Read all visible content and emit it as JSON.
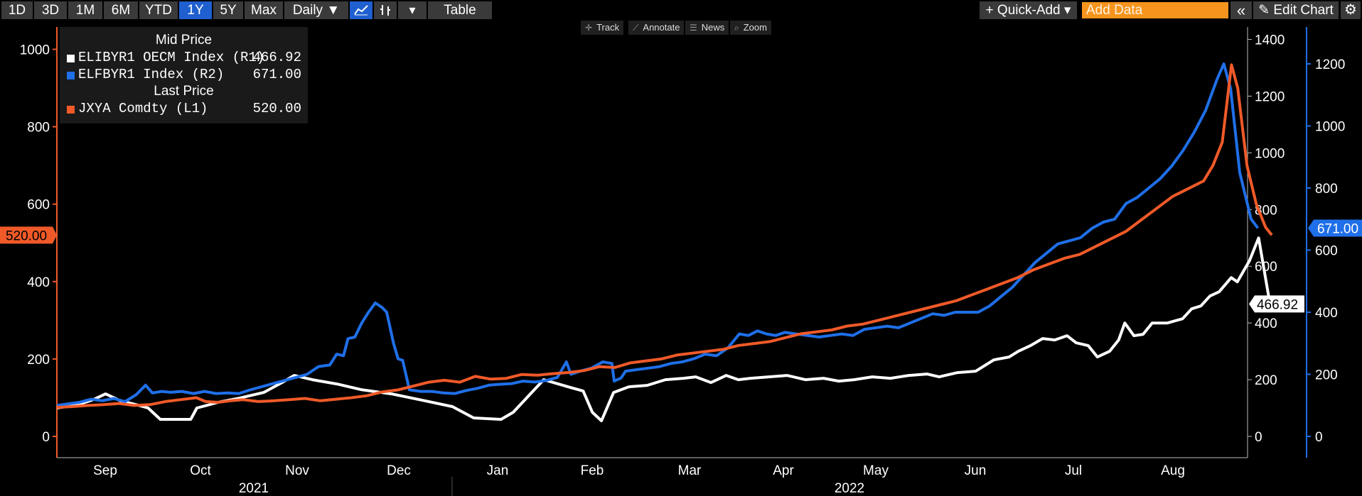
{
  "toolbar": {
    "ranges": [
      "1D",
      "3D",
      "1M",
      "6M",
      "YTD",
      "1Y",
      "5Y",
      "Max"
    ],
    "active_range": "1Y",
    "frequency": "Daily ▼",
    "table_label": "Table",
    "quick_add_label": "+ Quick-Add ▾",
    "add_data_placeholder": "Add Data",
    "edit_chart_label": "Edit Chart"
  },
  "mini_toolbar": {
    "track": "Track",
    "annotate": "Annotate",
    "news": "News",
    "zoom": "Zoom"
  },
  "legend": {
    "group1": "Mid Price",
    "group2": "Last Price",
    "items": [
      {
        "name": "ELIBYR1 OECM Index  (R1)",
        "value": "466.92",
        "color": "#ffffff"
      },
      {
        "name": "ELFBYR1 Index  (R2)",
        "value": "671.00",
        "color": "#1f6fe8"
      },
      {
        "name": "JXYA Comdty  (L1)",
        "value": "520.00",
        "color": "#f05a28"
      }
    ]
  },
  "tags": {
    "left": "520.00",
    "r1": "466.92",
    "r2": "671.00"
  },
  "chart_data": {
    "type": "line",
    "x_months": [
      "Sep",
      "Oct",
      "Nov",
      "Dec",
      "Jan",
      "Feb",
      "Mar",
      "Apr",
      "May",
      "Jun",
      "Jul",
      "Aug"
    ],
    "x_years": [
      "2021",
      "2022"
    ],
    "axes": {
      "left": {
        "ticks": [
          0,
          200,
          400,
          600,
          800,
          1000
        ],
        "color": "#f05a28"
      },
      "right1": {
        "ticks": [
          0,
          200,
          400,
          600,
          800,
          1000,
          1200,
          1400
        ],
        "color": "#ffffff"
      },
      "right2": {
        "ticks": [
          0,
          200,
          400,
          600,
          800,
          1000,
          1200
        ],
        "color": "#1f6fe8"
      }
    },
    "series": [
      {
        "name": "ELIBYR1 OECM Index",
        "axis": "right1",
        "color": "#ffffff",
        "points": [
          [
            0,
            100
          ],
          [
            0.3,
            105
          ],
          [
            0.7,
            112
          ],
          [
            1.2,
            130
          ],
          [
            1.6,
            150
          ],
          [
            2.1,
            125
          ],
          [
            2.6,
            112
          ],
          [
            3.0,
            100
          ],
          [
            3.4,
            60
          ],
          [
            4.4,
            60
          ],
          [
            4.6,
            100
          ],
          [
            5.3,
            120
          ],
          [
            6.0,
            135
          ],
          [
            6.8,
            155
          ],
          [
            7.4,
            190
          ],
          [
            7.8,
            215
          ],
          [
            8.4,
            200
          ],
          [
            9.2,
            185
          ],
          [
            10.0,
            165
          ],
          [
            11.0,
            150
          ],
          [
            12.0,
            128
          ],
          [
            13.0,
            105
          ],
          [
            13.7,
            65
          ],
          [
            14.6,
            60
          ],
          [
            15.0,
            85
          ],
          [
            16.0,
            200
          ],
          [
            16.8,
            175
          ],
          [
            17.3,
            160
          ],
          [
            17.6,
            85
          ],
          [
            17.9,
            55
          ],
          [
            18.3,
            155
          ],
          [
            18.8,
            175
          ],
          [
            19.4,
            180
          ],
          [
            20.0,
            200
          ],
          [
            20.6,
            205
          ],
          [
            21.0,
            210
          ],
          [
            21.5,
            190
          ],
          [
            22.0,
            215
          ],
          [
            22.4,
            200
          ],
          [
            22.8,
            205
          ],
          [
            23.4,
            210
          ],
          [
            24.0,
            215
          ],
          [
            24.6,
            200
          ],
          [
            25.2,
            205
          ],
          [
            25.7,
            195
          ],
          [
            26.2,
            200
          ],
          [
            26.8,
            210
          ],
          [
            27.4,
            205
          ],
          [
            28.0,
            215
          ],
          [
            28.6,
            220
          ],
          [
            29.0,
            210
          ],
          [
            29.6,
            225
          ],
          [
            30.2,
            230
          ],
          [
            30.8,
            270
          ],
          [
            31.3,
            280
          ],
          [
            31.6,
            300
          ],
          [
            32.0,
            320
          ],
          [
            32.4,
            345
          ],
          [
            32.8,
            340
          ],
          [
            33.2,
            355
          ],
          [
            33.5,
            330
          ],
          [
            33.9,
            320
          ],
          [
            34.2,
            280
          ],
          [
            34.6,
            300
          ],
          [
            34.9,
            340
          ],
          [
            35.1,
            400
          ],
          [
            35.4,
            355
          ],
          [
            35.7,
            360
          ],
          [
            36.0,
            400
          ],
          [
            36.5,
            400
          ],
          [
            37.0,
            415
          ],
          [
            37.3,
            450
          ],
          [
            37.6,
            460
          ],
          [
            37.9,
            495
          ],
          [
            38.2,
            510
          ],
          [
            38.6,
            560
          ],
          [
            38.8,
            545
          ],
          [
            39.2,
            620
          ],
          [
            39.5,
            700
          ],
          [
            39.9,
            450
          ],
          [
            40.1,
            460
          ],
          [
            40.3,
            466.92
          ]
        ]
      },
      {
        "name": "ELFBYR1 Index",
        "axis": "right2",
        "color": "#1f6fe8",
        "points": [
          [
            0,
            100
          ],
          [
            0.5,
            105
          ],
          [
            1.0,
            110
          ],
          [
            1.5,
            120
          ],
          [
            2.0,
            115
          ],
          [
            2.5,
            122
          ],
          [
            3.0,
            112
          ],
          [
            3.5,
            135
          ],
          [
            3.9,
            165
          ],
          [
            4.2,
            140
          ],
          [
            4.6,
            145
          ],
          [
            5.0,
            142
          ],
          [
            5.5,
            145
          ],
          [
            6.0,
            138
          ],
          [
            6.5,
            145
          ],
          [
            7.0,
            138
          ],
          [
            7.5,
            140
          ],
          [
            8.0,
            138
          ],
          [
            8.5,
            150
          ],
          [
            9.0,
            160
          ],
          [
            9.5,
            170
          ],
          [
            10.0,
            180
          ],
          [
            10.5,
            190
          ],
          [
            11.0,
            200
          ],
          [
            11.5,
            225
          ],
          [
            12.0,
            230
          ],
          [
            12.3,
            265
          ],
          [
            12.6,
            260
          ],
          [
            12.8,
            315
          ],
          [
            13.1,
            320
          ],
          [
            13.4,
            365
          ],
          [
            13.7,
            400
          ],
          [
            14.0,
            430
          ],
          [
            14.3,
            415
          ],
          [
            14.5,
            400
          ],
          [
            14.8,
            300
          ],
          [
            15.0,
            250
          ],
          [
            15.2,
            245
          ],
          [
            15.5,
            150
          ],
          [
            16.0,
            145
          ],
          [
            16.5,
            145
          ],
          [
            17.0,
            140
          ],
          [
            17.5,
            138
          ],
          [
            18.0,
            148
          ],
          [
            18.5,
            155
          ],
          [
            19.0,
            165
          ],
          [
            19.5,
            168
          ],
          [
            20.0,
            170
          ],
          [
            20.5,
            178
          ],
          [
            21.0,
            175
          ],
          [
            21.5,
            180
          ],
          [
            22.0,
            190
          ],
          [
            22.4,
            240
          ],
          [
            22.6,
            200
          ],
          [
            23.0,
            210
          ],
          [
            23.5,
            220
          ],
          [
            24.0,
            240
          ],
          [
            24.4,
            235
          ],
          [
            24.5,
            178
          ],
          [
            24.8,
            188
          ],
          [
            25.0,
            210
          ],
          [
            25.5,
            215
          ],
          [
            26.0,
            220
          ],
          [
            26.5,
            225
          ],
          [
            27.0,
            235
          ],
          [
            27.5,
            240
          ],
          [
            28.0,
            250
          ],
          [
            28.5,
            265
          ],
          [
            29.0,
            260
          ],
          [
            29.5,
            285
          ],
          [
            30.0,
            330
          ],
          [
            30.4,
            325
          ],
          [
            30.8,
            340
          ],
          [
            31.2,
            330
          ],
          [
            31.6,
            325
          ],
          [
            32.0,
            335
          ],
          [
            32.5,
            330
          ],
          [
            33.0,
            325
          ],
          [
            33.5,
            320
          ],
          [
            34.0,
            325
          ],
          [
            34.5,
            330
          ],
          [
            35.0,
            325
          ],
          [
            35.5,
            345
          ],
          [
            36.0,
            350
          ],
          [
            36.5,
            355
          ],
          [
            37.0,
            350
          ],
          [
            37.5,
            365
          ],
          [
            38.0,
            380
          ],
          [
            38.5,
            395
          ],
          [
            39.0,
            390
          ],
          [
            39.5,
            400
          ],
          [
            40.0,
            400
          ],
          [
            40.5,
            400
          ],
          [
            41.0,
            420
          ],
          [
            41.5,
            450
          ],
          [
            42.0,
            480
          ],
          [
            42.5,
            520
          ],
          [
            43.0,
            560
          ],
          [
            43.5,
            590
          ],
          [
            44.0,
            620
          ],
          [
            44.5,
            630
          ],
          [
            45.0,
            640
          ],
          [
            45.5,
            670
          ],
          [
            46.0,
            690
          ],
          [
            46.5,
            700
          ],
          [
            47.0,
            750
          ],
          [
            47.5,
            770
          ],
          [
            48.0,
            800
          ],
          [
            48.5,
            830
          ],
          [
            49.0,
            870
          ],
          [
            49.5,
            920
          ],
          [
            50.0,
            980
          ],
          [
            50.5,
            1050
          ],
          [
            51.0,
            1150
          ],
          [
            51.3,
            1200
          ],
          [
            51.6,
            1120
          ],
          [
            52.0,
            850
          ],
          [
            52.5,
            700
          ],
          [
            52.8,
            671.0
          ]
        ]
      },
      {
        "name": "JXYA Comdty",
        "axis": "left",
        "color": "#f05a28",
        "points": [
          [
            0,
            75
          ],
          [
            0.5,
            77
          ],
          [
            1.0,
            80
          ],
          [
            1.5,
            82
          ],
          [
            2.0,
            85
          ],
          [
            2.5,
            80
          ],
          [
            3.0,
            82
          ],
          [
            3.5,
            90
          ],
          [
            4.0,
            95
          ],
          [
            4.5,
            100
          ],
          [
            4.8,
            90
          ],
          [
            5.2,
            88
          ],
          [
            5.6,
            92
          ],
          [
            6.0,
            95
          ],
          [
            6.5,
            90
          ],
          [
            7.0,
            92
          ],
          [
            7.5,
            95
          ],
          [
            8.0,
            98
          ],
          [
            8.5,
            92
          ],
          [
            9.0,
            96
          ],
          [
            9.5,
            100
          ],
          [
            10.0,
            105
          ],
          [
            10.5,
            115
          ],
          [
            11.0,
            120
          ],
          [
            11.5,
            130
          ],
          [
            12.0,
            140
          ],
          [
            12.5,
            145
          ],
          [
            13.0,
            140
          ],
          [
            13.5,
            155
          ],
          [
            14.0,
            148
          ],
          [
            14.5,
            150
          ],
          [
            15.0,
            160
          ],
          [
            15.5,
            158
          ],
          [
            16.0,
            162
          ],
          [
            16.5,
            165
          ],
          [
            17.0,
            170
          ],
          [
            17.5,
            180
          ],
          [
            18.0,
            178
          ],
          [
            18.5,
            190
          ],
          [
            19.0,
            195
          ],
          [
            19.5,
            200
          ],
          [
            20.0,
            210
          ],
          [
            20.5,
            215
          ],
          [
            21.0,
            220
          ],
          [
            21.5,
            225
          ],
          [
            22.0,
            235
          ],
          [
            22.5,
            240
          ],
          [
            23.0,
            245
          ],
          [
            23.5,
            255
          ],
          [
            24.0,
            265
          ],
          [
            24.5,
            270
          ],
          [
            25.0,
            275
          ],
          [
            25.5,
            285
          ],
          [
            26.0,
            290
          ],
          [
            26.5,
            300
          ],
          [
            27.0,
            310
          ],
          [
            27.5,
            320
          ],
          [
            28.0,
            330
          ],
          [
            28.5,
            340
          ],
          [
            29.0,
            350
          ],
          [
            29.5,
            365
          ],
          [
            30.0,
            380
          ],
          [
            30.5,
            395
          ],
          [
            31.0,
            410
          ],
          [
            31.5,
            430
          ],
          [
            32.0,
            445
          ],
          [
            32.5,
            460
          ],
          [
            33.0,
            470
          ],
          [
            33.5,
            490
          ],
          [
            34.0,
            510
          ],
          [
            34.5,
            530
          ],
          [
            35.0,
            560
          ],
          [
            35.5,
            590
          ],
          [
            36.0,
            620
          ],
          [
            36.5,
            640
          ],
          [
            37.0,
            660
          ],
          [
            37.3,
            700
          ],
          [
            37.6,
            760
          ],
          [
            37.9,
            960
          ],
          [
            38.1,
            900
          ],
          [
            38.4,
            700
          ],
          [
            38.7,
            600
          ],
          [
            39.0,
            540
          ],
          [
            39.2,
            520.0
          ]
        ]
      }
    ]
  }
}
